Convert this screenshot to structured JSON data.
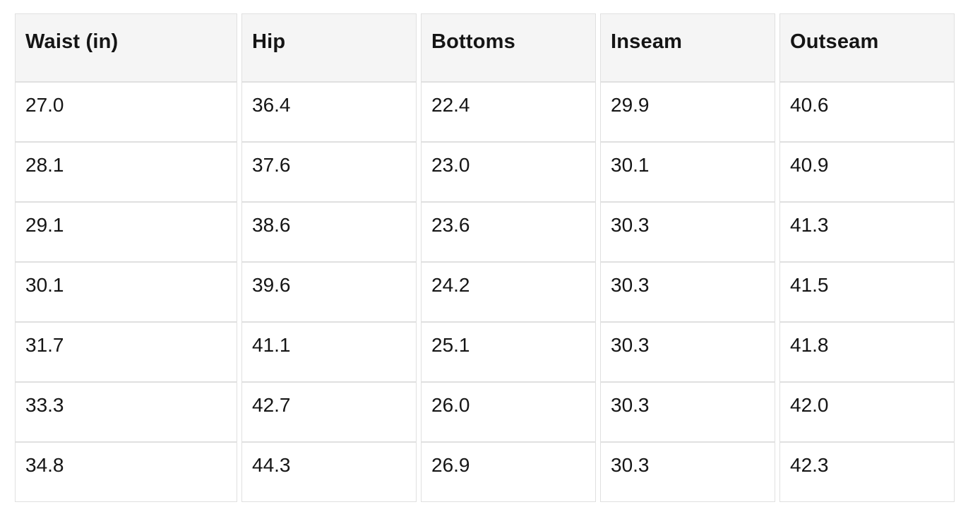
{
  "table": {
    "columns": [
      "Waist (in)",
      "Hip",
      "Bottoms",
      "Inseam",
      "Outseam"
    ],
    "rows": [
      [
        "27.0",
        "36.4",
        "22.4",
        "29.9",
        "40.6"
      ],
      [
        "28.1",
        "37.6",
        "23.0",
        "30.1",
        "40.9"
      ],
      [
        "29.1",
        "38.6",
        "23.6",
        "30.3",
        "41.3"
      ],
      [
        "30.1",
        "39.6",
        "24.2",
        "30.3",
        "41.5"
      ],
      [
        "31.7",
        "41.1",
        "25.1",
        "30.3",
        "41.8"
      ],
      [
        "33.3",
        "42.7",
        "26.0",
        "30.3",
        "42.0"
      ],
      [
        "34.8",
        "44.3",
        "26.9",
        "30.3",
        "42.3"
      ]
    ]
  },
  "colors": {
    "header_background": "#f5f5f5",
    "cell_border": "#e0e0e0",
    "text": "#151515",
    "page_background": "#ffffff"
  }
}
